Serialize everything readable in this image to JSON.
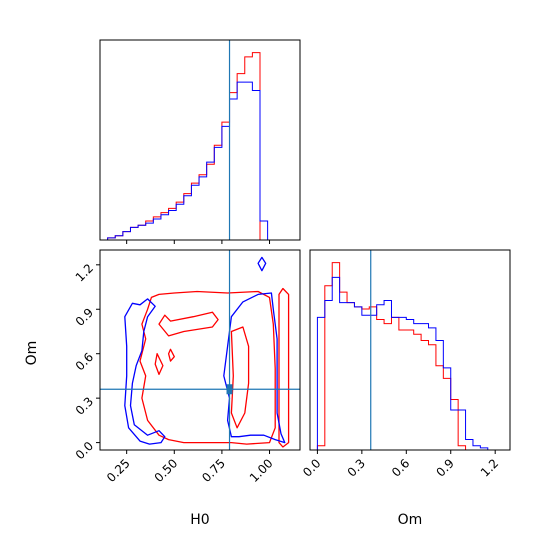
{
  "chart_data": {
    "type": "corner",
    "parameters": [
      "H0",
      "Om"
    ],
    "truths": {
      "H0": 0.79,
      "Om": 0.36
    },
    "colors": {
      "red": "#ff0000",
      "blue": "#0000ff",
      "truth": "#1f77b4"
    },
    "ranges": {
      "H0": [
        0.11,
        1.16
      ],
      "Om": [
        -0.05,
        1.3
      ]
    },
    "ticks": {
      "H0": [
        "0.25",
        "0.50",
        "0.75",
        "1.00"
      ],
      "Om_y": [
        "0.0",
        "0.3",
        "0.6",
        "0.9",
        "1.2"
      ],
      "Om_x": [
        "0.0",
        "0.3",
        "0.6",
        "0.9",
        "1.2"
      ]
    },
    "xlabel": "H0",
    "ylabel": "Om",
    "hist_H0": {
      "x_range": [
        0.11,
        1.16
      ],
      "bins": [
        0.11,
        0.15,
        0.19,
        0.23,
        0.27,
        0.31,
        0.35,
        0.39,
        0.43,
        0.47,
        0.51,
        0.55,
        0.59,
        0.63,
        0.67,
        0.71,
        0.75,
        0.79,
        0.83,
        0.87,
        0.91,
        0.95,
        0.99,
        1.03,
        1.07
      ],
      "series": [
        {
          "color": "red",
          "values": [
            0,
            0.01,
            0.02,
            0.04,
            0.06,
            0.07,
            0.09,
            0.11,
            0.13,
            0.15,
            0.18,
            0.22,
            0.27,
            0.31,
            0.36,
            0.45,
            0.56,
            0.7,
            0.79,
            0.87,
            0.89,
            0,
            0,
            0
          ]
        },
        {
          "color": "blue",
          "values": [
            0,
            0.01,
            0.02,
            0.04,
            0.06,
            0.07,
            0.08,
            0.1,
            0.12,
            0.14,
            0.17,
            0.21,
            0.26,
            0.3,
            0.37,
            0.44,
            0.54,
            0.67,
            0.75,
            0.75,
            0.71,
            0.09,
            0,
            0
          ]
        }
      ]
    },
    "hist_Om": {
      "x_range": [
        -0.05,
        1.3
      ],
      "bins": [
        0.0,
        0.05,
        0.1,
        0.15,
        0.2,
        0.25,
        0.3,
        0.35,
        0.4,
        0.45,
        0.5,
        0.55,
        0.6,
        0.65,
        0.7,
        0.75,
        0.8,
        0.85,
        0.9,
        0.95,
        1.0,
        1.05,
        1.1,
        1.15,
        1.2
      ],
      "series": [
        {
          "color": "red",
          "values": [
            0.02,
            0.78,
            0.89,
            0.75,
            0.7,
            0.68,
            0.67,
            0.68,
            0.62,
            0.6,
            0.63,
            0.57,
            0.57,
            0.55,
            0.52,
            0.5,
            0.4,
            0.34,
            0.24,
            0.02,
            0,
            0,
            0,
            0
          ]
        },
        {
          "color": "blue",
          "values": [
            0.63,
            0.71,
            0.82,
            0.7,
            0.7,
            0.68,
            0.64,
            0.64,
            0.69,
            0.71,
            0.63,
            0.63,
            0.62,
            0.6,
            0.6,
            0.58,
            0.52,
            0.39,
            0.19,
            0.19,
            0.05,
            0.02,
            0.01,
            0
          ]
        }
      ]
    },
    "contours": [
      {
        "color": "red",
        "points": [
          [
            0.38,
            0.98
          ],
          [
            0.42,
            1.0
          ],
          [
            0.5,
            1.01
          ],
          [
            0.62,
            1.02
          ],
          [
            0.78,
            1.01
          ],
          [
            0.94,
            1.02
          ],
          [
            1.0,
            0.98
          ],
          [
            1.02,
            0.8
          ],
          [
            1.03,
            0.5
          ],
          [
            1.03,
            0.1
          ],
          [
            1.0,
            0.0
          ],
          [
            0.88,
            -0.01
          ],
          [
            0.8,
            0.0
          ],
          [
            0.72,
            0.0
          ],
          [
            0.55,
            0.0
          ],
          [
            0.47,
            0.02
          ],
          [
            0.42,
            0.05
          ],
          [
            0.36,
            0.15
          ],
          [
            0.33,
            0.3
          ],
          [
            0.35,
            0.45
          ],
          [
            0.32,
            0.55
          ],
          [
            0.35,
            0.7
          ],
          [
            0.33,
            0.8
          ],
          [
            0.36,
            0.9
          ],
          [
            0.38,
            0.98
          ]
        ]
      },
      {
        "color": "red",
        "points": [
          [
            0.42,
            0.8
          ],
          [
            0.45,
            0.86
          ],
          [
            0.48,
            0.82
          ],
          [
            0.6,
            0.85
          ],
          [
            0.7,
            0.88
          ],
          [
            0.73,
            0.83
          ],
          [
            0.7,
            0.78
          ],
          [
            0.55,
            0.75
          ],
          [
            0.47,
            0.72
          ],
          [
            0.42,
            0.8
          ]
        ]
      },
      {
        "color": "red",
        "points": [
          [
            1.07,
            1.04
          ],
          [
            1.1,
            1.0
          ],
          [
            1.1,
            0.5
          ],
          [
            1.1,
            0.0
          ],
          [
            1.07,
            -0.03
          ],
          [
            1.05,
            0.0
          ],
          [
            1.05,
            0.5
          ],
          [
            1.05,
            1.0
          ],
          [
            1.07,
            1.04
          ]
        ]
      },
      {
        "color": "red",
        "points": [
          [
            0.8,
            0.75
          ],
          [
            0.86,
            0.78
          ],
          [
            0.89,
            0.65
          ],
          [
            0.89,
            0.4
          ],
          [
            0.87,
            0.2
          ],
          [
            0.83,
            0.1
          ],
          [
            0.8,
            0.2
          ],
          [
            0.81,
            0.45
          ],
          [
            0.8,
            0.75
          ]
        ]
      },
      {
        "color": "red",
        "points": [
          [
            0.48,
            0.63
          ],
          [
            0.5,
            0.58
          ],
          [
            0.48,
            0.55
          ],
          [
            0.47,
            0.6
          ],
          [
            0.48,
            0.63
          ]
        ]
      },
      {
        "color": "red",
        "points": [
          [
            0.41,
            0.6
          ],
          [
            0.44,
            0.52
          ],
          [
            0.42,
            0.46
          ],
          [
            0.4,
            0.53
          ],
          [
            0.41,
            0.6
          ]
        ]
      },
      {
        "color": "blue",
        "points": [
          [
            0.28,
            0.94
          ],
          [
            0.32,
            0.93
          ],
          [
            0.36,
            0.97
          ],
          [
            0.4,
            0.92
          ],
          [
            0.36,
            0.85
          ],
          [
            0.34,
            0.75
          ],
          [
            0.33,
            0.62
          ],
          [
            0.3,
            0.52
          ],
          [
            0.28,
            0.4
          ],
          [
            0.27,
            0.25
          ],
          [
            0.29,
            0.12
          ],
          [
            0.36,
            0.05
          ],
          [
            0.42,
            0.08
          ],
          [
            0.45,
            0.04
          ],
          [
            0.43,
            0.0
          ],
          [
            0.37,
            -0.01
          ],
          [
            0.32,
            0.01
          ],
          [
            0.26,
            0.1
          ],
          [
            0.24,
            0.25
          ],
          [
            0.25,
            0.45
          ],
          [
            0.25,
            0.65
          ],
          [
            0.24,
            0.85
          ],
          [
            0.28,
            0.94
          ]
        ]
      },
      {
        "color": "blue",
        "points": [
          [
            0.94,
            1.0
          ],
          [
            1.01,
            1.01
          ],
          [
            1.02,
            0.9
          ],
          [
            1.04,
            0.7
          ],
          [
            1.04,
            0.45
          ],
          [
            1.04,
            0.2
          ],
          [
            1.06,
            0.06
          ],
          [
            1.08,
            0.0
          ],
          [
            1.03,
            0.02
          ],
          [
            0.97,
            0.05
          ],
          [
            0.9,
            0.05
          ],
          [
            0.84,
            0.04
          ],
          [
            0.8,
            0.04
          ],
          [
            0.78,
            0.15
          ],
          [
            0.79,
            0.3
          ],
          [
            0.76,
            0.45
          ],
          [
            0.78,
            0.65
          ],
          [
            0.8,
            0.85
          ],
          [
            0.86,
            0.95
          ],
          [
            0.94,
            1.0
          ]
        ]
      },
      {
        "color": "blue",
        "points": [
          [
            0.96,
            1.25
          ],
          [
            0.98,
            1.21
          ],
          [
            0.96,
            1.16
          ],
          [
            0.94,
            1.21
          ],
          [
            0.96,
            1.25
          ]
        ]
      }
    ]
  }
}
